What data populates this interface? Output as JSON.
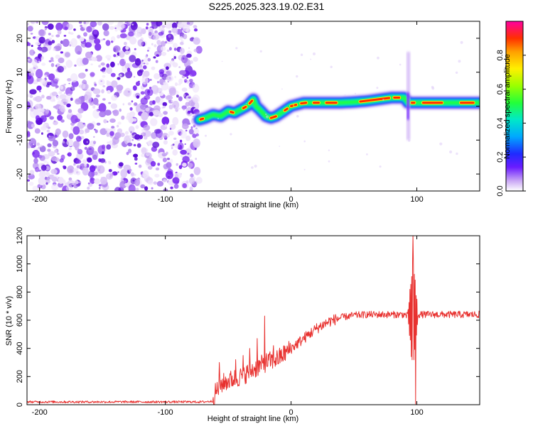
{
  "title": "S225.2025.323.19.02.E31",
  "chart_data": [
    {
      "type": "heatmap",
      "name": "spectrogram",
      "xlabel": "Height of straight line (km)",
      "ylabel": "Frequency (Hz)",
      "xlim": [
        -210,
        150
      ],
      "ylim": [
        -25,
        25
      ],
      "xticks": [
        -200,
        -100,
        0,
        100
      ],
      "xtick_labels": [
        "-200",
        "-100",
        "0",
        "100"
      ],
      "yticks": [
        -20,
        -10,
        0,
        10,
        20
      ],
      "ytick_labels": [
        "-20",
        "-10",
        "0",
        "10",
        "20"
      ],
      "noise_region_x": [
        -210,
        -73
      ],
      "ridge": {
        "x": [
          -73,
          -68,
          -62,
          -56,
          -50,
          -45,
          -40,
          -35,
          -30,
          -28,
          -25,
          -20,
          -16,
          -12,
          -8,
          -4,
          0,
          5,
          10,
          20,
          30,
          40,
          50,
          60,
          70,
          80,
          85,
          90,
          93,
          96,
          100,
          110,
          120,
          130,
          140,
          150
        ],
        "freq": [
          -4,
          -3.5,
          -2.5,
          -3,
          -1.5,
          -2,
          -1,
          0,
          2,
          0,
          -1,
          -3,
          -3.5,
          -3,
          -2,
          -1,
          0,
          0.5,
          1,
          1,
          1,
          1,
          1.2,
          1.5,
          2,
          2.5,
          2.5,
          2.5,
          1,
          1,
          1,
          1,
          1,
          1,
          1,
          1
        ]
      },
      "colorbar": {
        "label": "Normalized spectral amplitude",
        "ticks": [
          0.0,
          0.2,
          0.4,
          0.6,
          0.8
        ],
        "tick_labels": [
          "0.0",
          "0.2",
          "0.4",
          "0.6",
          "0.8"
        ],
        "range": [
          0,
          1
        ]
      }
    },
    {
      "type": "line",
      "name": "snr",
      "xlabel": "Height of straight line (km)",
      "ylabel": "SNR (10 * v/v)",
      "xlim": [
        -210,
        150
      ],
      "ylim": [
        0,
        1200
      ],
      "xticks": [
        -200,
        -100,
        0,
        100
      ],
      "xtick_labels": [
        "-200",
        "-100",
        "0",
        "100"
      ],
      "yticks": [
        0,
        200,
        400,
        600,
        800,
        1000,
        1200
      ],
      "ytick_labels": [
        "0",
        "200",
        "400",
        "600",
        "800",
        "1000",
        "1200"
      ],
      "color": "#e8312f",
      "series_envelope": {
        "x": [
          -210,
          -70,
          -62,
          -60,
          -55,
          -50,
          -40,
          -30,
          -20,
          -10,
          0,
          10,
          20,
          30,
          40,
          50,
          60,
          70,
          80,
          90,
          95,
          100,
          105,
          110,
          120,
          130,
          140,
          150
        ],
        "mean": [
          20,
          20,
          25,
          90,
          150,
          170,
          200,
          250,
          300,
          330,
          400,
          470,
          540,
          590,
          620,
          635,
          640,
          640,
          640,
          640,
          620,
          640,
          640,
          640,
          640,
          640,
          640,
          640
        ]
      },
      "spikes": [
        {
          "x": -57,
          "y": 300
        },
        {
          "x": -44,
          "y": 320
        },
        {
          "x": -38,
          "y": 350
        },
        {
          "x": -33,
          "y": 400
        },
        {
          "x": -27,
          "y": 470
        },
        {
          "x": -21,
          "y": 630
        },
        {
          "x": -14,
          "y": 420
        },
        {
          "x": 97,
          "y": 1200
        },
        {
          "x": 99,
          "y": 5
        }
      ]
    }
  ],
  "colors": {
    "line": "#e8312f",
    "noise": "#8a3ff0"
  }
}
